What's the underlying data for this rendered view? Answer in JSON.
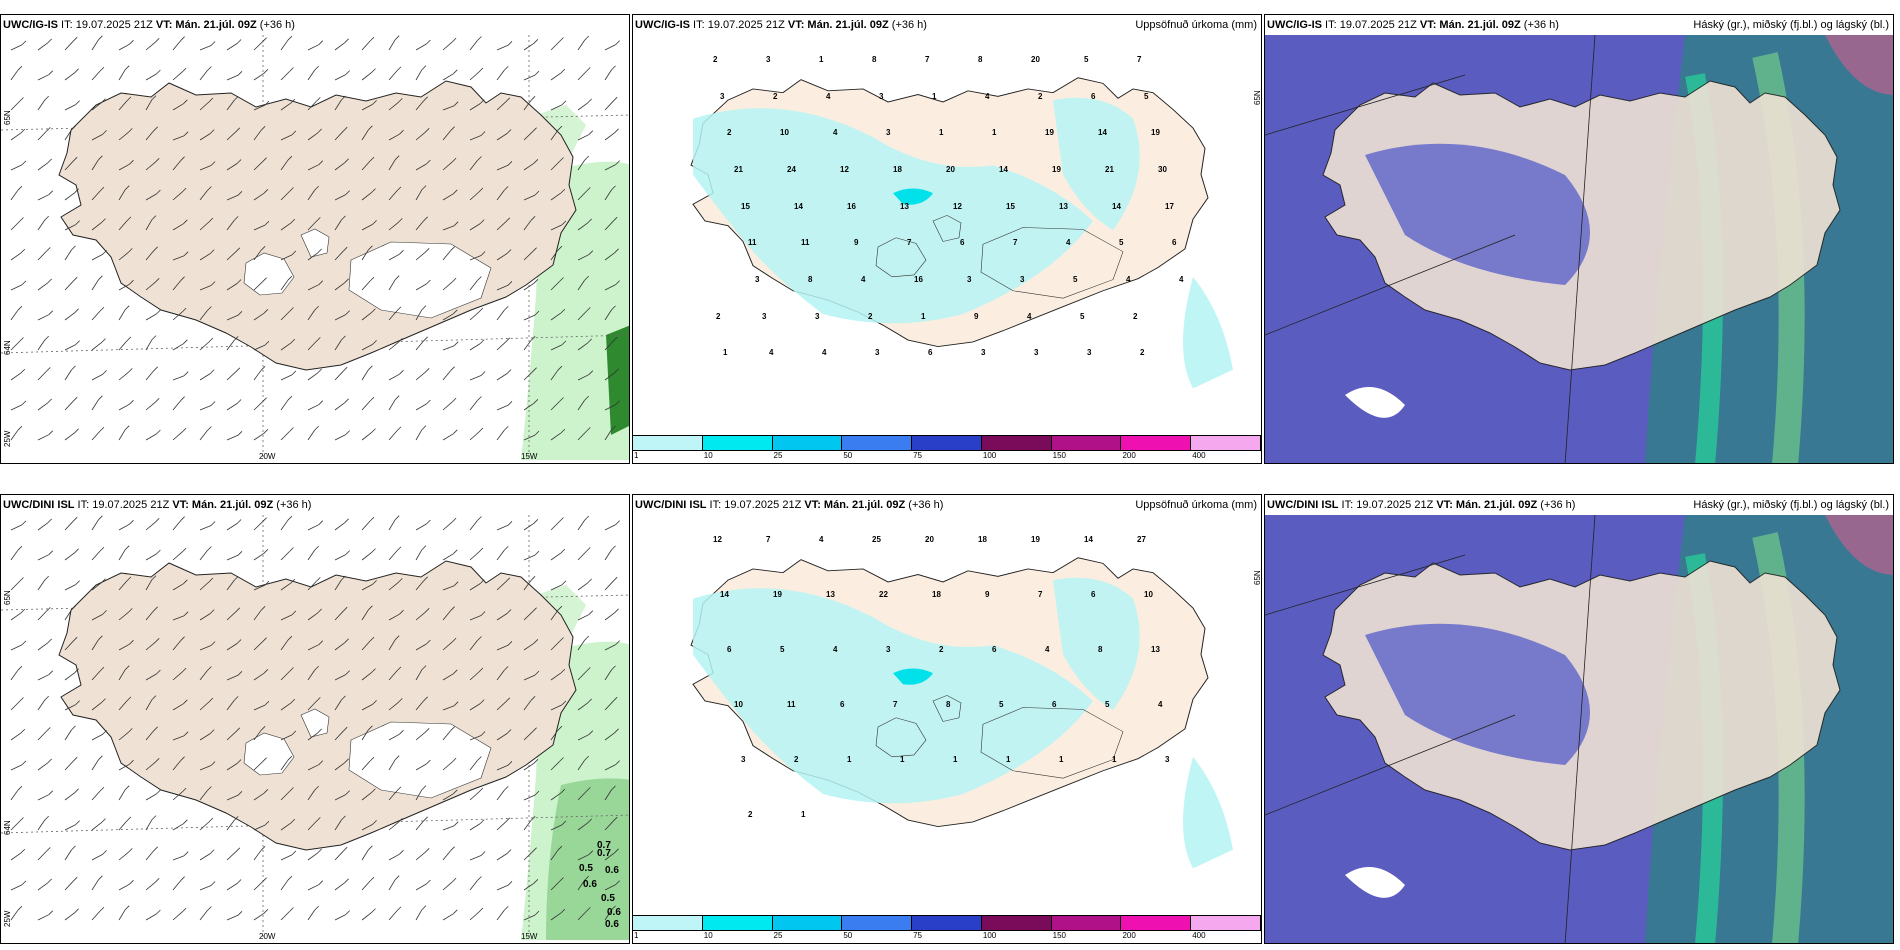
{
  "rows": [
    {
      "panels": [
        {
          "id": "r0p0",
          "model": "UWC/IG-IS",
          "it": "IT: 19.07.2025 21Z",
          "vt": "VT: Mán. 21.júl. 09Z",
          "lead": "(+36 h)",
          "right": "",
          "type": "wind",
          "lon_labels": [
            "20W",
            "15W"
          ],
          "lat_labels": [
            "65N",
            "64N",
            "25W"
          ]
        },
        {
          "id": "r0p1",
          "model": "UWC/IG-IS",
          "it": "IT: 19.07.2025 21Z",
          "vt": "VT: Mán. 21.júl. 09Z",
          "lead": "(+36 h)",
          "right": "Uppsöfnuð úrkoma (mm)",
          "type": "precip",
          "lat_labels": [
            "65N"
          ],
          "values": [
            "2",
            "3",
            "1",
            "8",
            "7",
            "8",
            "20",
            "5",
            "7",
            "3",
            "2",
            "4",
            "3",
            "1",
            "4",
            "2",
            "6",
            "5",
            "2",
            "10",
            "4",
            "3",
            "1",
            "1",
            "19",
            "14",
            "19",
            "21",
            "24",
            "12",
            "18",
            "20",
            "14",
            "19",
            "21",
            "30",
            "15",
            "14",
            "16",
            "13",
            "12",
            "15",
            "13",
            "14",
            "17",
            "11",
            "11",
            "9",
            "7",
            "6",
            "7",
            "4",
            "5",
            "6",
            "3",
            "8",
            "4",
            "16",
            "3",
            "3",
            "5",
            "4",
            "4",
            "3",
            "3",
            "2",
            "1",
            "9",
            "4",
            "5",
            "2",
            "2",
            "4",
            "4",
            "3",
            "6",
            "3",
            "3",
            "3",
            "2",
            "1"
          ]
        },
        {
          "id": "r0p2",
          "model": "UWC/IG-IS",
          "it": "IT: 19.07.2025 21Z",
          "vt": "VT: Mán. 21.júl. 09Z",
          "lead": "(+36 h)",
          "right": "Háský (gr.), miðský (fj.bl.) og lágský (bl.)",
          "type": "cloud"
        }
      ]
    },
    {
      "panels": [
        {
          "id": "r1p0",
          "model": "UWC/DINI ISL",
          "it": "IT: 19.07.2025 21Z",
          "vt": "VT: Mán. 21.júl. 09Z",
          "lead": "(+36 h)",
          "right": "",
          "type": "wind",
          "lon_labels": [
            "20W",
            "15W"
          ],
          "lat_labels": [
            "65N",
            "64N",
            "25W"
          ],
          "gust": [
            "0.7",
            "0.7",
            "0.5",
            "0.6",
            "0.6",
            "0.5",
            "0.6",
            "0.6"
          ]
        },
        {
          "id": "r1p1",
          "model": "UWC/DINI ISL",
          "it": "IT: 19.07.2025 21Z",
          "vt": "VT: Mán. 21.júl. 09Z",
          "lead": "(+36 h)",
          "right": "Uppsöfnuð úrkoma (mm)",
          "type": "precip",
          "lat_labels": [
            "65N"
          ],
          "values": [
            "12",
            "7",
            "4",
            "25",
            "20",
            "18",
            "19",
            "14",
            "27",
            "14",
            "19",
            "13",
            "22",
            "18",
            "9",
            "7",
            "6",
            "10",
            "6",
            "5",
            "4",
            "3",
            "2",
            "6",
            "4",
            "8",
            "13",
            "10",
            "11",
            "6",
            "7",
            "8",
            "5",
            "6",
            "5",
            "4",
            "3",
            "2",
            "1",
            "1",
            "1",
            "1",
            "1",
            "1",
            "3",
            "2",
            "1"
          ]
        },
        {
          "id": "r1p2",
          "model": "UWC/DINI ISL",
          "it": "IT: 19.07.2025 21Z",
          "vt": "VT: Mán. 21.júl. 09Z",
          "lead": "(+36 h)",
          "right": "Háský (gr.), miðský (fj.bl.) og lágský (bl.)",
          "type": "cloud"
        }
      ]
    }
  ],
  "colorbar": {
    "ticks": [
      "1",
      "10",
      "25",
      "50",
      "75",
      "100",
      "150",
      "200",
      "400"
    ],
    "colors": [
      "#bff5f7",
      "#00e9f0",
      "#00c6f0",
      "#3a7df0",
      "#2a3fc8",
      "#7a0a5a",
      "#b01088",
      "#ee10b0",
      "#f6a8ee"
    ]
  },
  "colors": {
    "land": "#efe2d4",
    "precip_land": "#fbeee0",
    "precip": "#b5f3f5",
    "cloud_high": "#6c6fc9",
    "cloud_bg": "#5a5cc0",
    "green": "#c8f2c8"
  }
}
